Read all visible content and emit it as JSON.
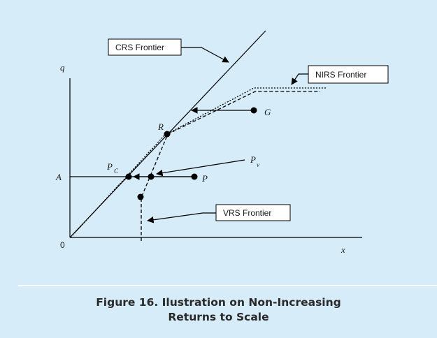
{
  "diagram": {
    "axis_y_label": "q",
    "axis_x_label": "x",
    "origin_label": "0",
    "labels": {
      "crs": "CRS Frontier",
      "nirs": "NIRS Frontier",
      "vrs": "VRS Frontier"
    },
    "points": {
      "r": "R",
      "g": "G",
      "a": "A",
      "p": "P",
      "pc_main": "P",
      "pc_sub": "C",
      "pv_main": "P",
      "pv_sub": "v"
    }
  },
  "caption": {
    "line1": "Figure 16. Ilustration on Non-Increasing",
    "line2": "Returns to Scale"
  }
}
